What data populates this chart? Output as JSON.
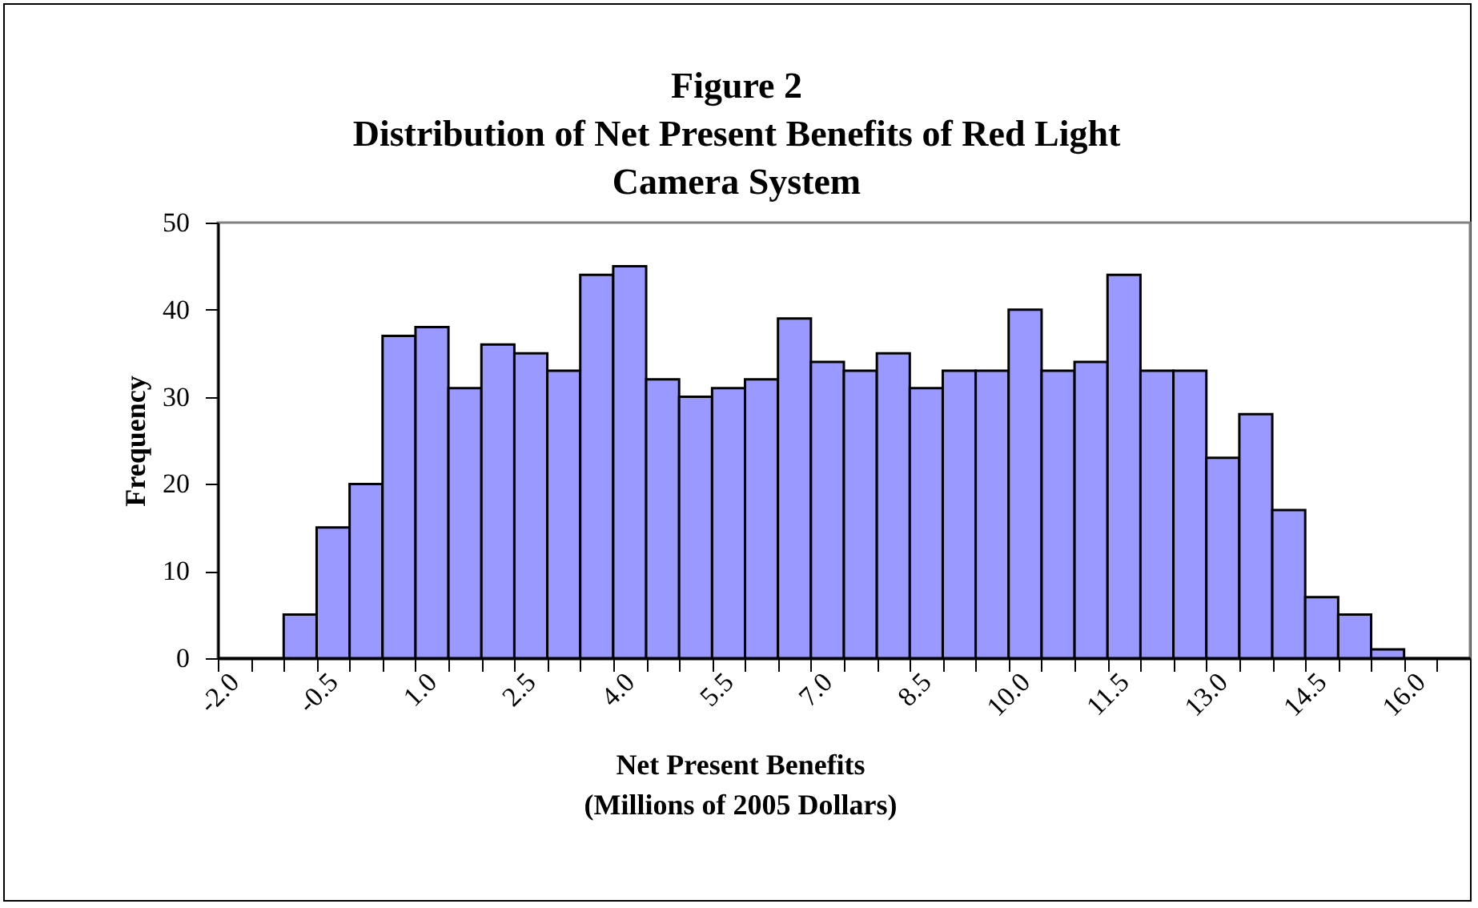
{
  "chart_data": {
    "type": "bar",
    "title": "Figure 2\nDistribution of Net Present Benefits of Red Light\nCamera System",
    "xlabel": "Net Present Benefits\n(Millions of 2005 Dollars)",
    "ylabel": "Frequency",
    "categories": [
      "-2.0",
      null,
      null,
      "-0.5",
      null,
      null,
      "1.0",
      null,
      null,
      "2.5",
      null,
      null,
      "4.0",
      null,
      null,
      "5.5",
      null,
      null,
      "7.0",
      null,
      null,
      "8.5",
      null,
      null,
      "10.0",
      null,
      null,
      "11.5",
      null,
      null,
      "13.0",
      null,
      null,
      "14.5",
      null,
      null,
      "16.0",
      null
    ],
    "values": [
      0,
      0,
      5,
      15,
      20,
      37,
      38,
      31,
      36,
      35,
      33,
      44,
      45,
      32,
      30,
      31,
      32,
      39,
      34,
      33,
      35,
      31,
      33,
      33,
      40,
      33,
      34,
      44,
      33,
      33,
      23,
      28,
      17,
      7,
      5,
      1,
      0,
      0
    ],
    "color": "#9999ff",
    "ylim": [
      0,
      50
    ],
    "yticks": [
      0,
      10,
      20,
      30,
      40,
      50
    ]
  }
}
